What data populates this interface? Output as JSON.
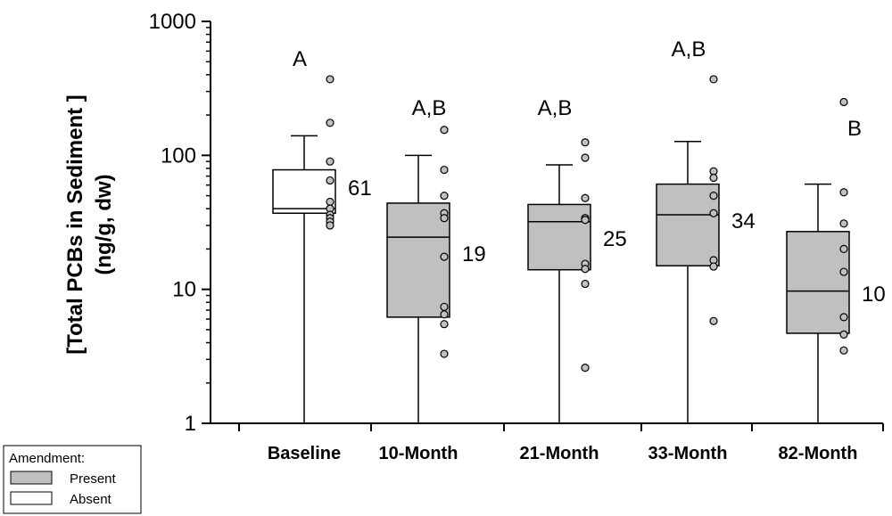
{
  "chart_data": {
    "type": "box",
    "ylabel": "[Total PCBs in Sediment ]",
    "ylabel_units": "(ng/g, dw)",
    "yscale": "log",
    "ylim": [
      1,
      1000
    ],
    "yticks": [
      {
        "value": 1,
        "label": "1"
      },
      {
        "value": 10,
        "label": "10"
      },
      {
        "value": 100,
        "label": "100"
      },
      {
        "value": 1000,
        "label": "1000"
      }
    ],
    "categories": [
      "Baseline",
      "10-Month",
      "21-Month",
      "33-Month",
      "82-Month"
    ],
    "groups": [
      {
        "name": "Baseline",
        "amendment": "Absent",
        "whisker_low": 1,
        "q1": 37,
        "median": 40,
        "q3": 78,
        "whisker_high": 140,
        "median_label": "61",
        "significance": "A",
        "points": [
          370,
          175,
          90,
          65,
          45,
          40,
          36,
          34,
          32,
          30
        ]
      },
      {
        "name": "10-Month",
        "amendment": "Present",
        "whisker_low": 1,
        "q1": 6.2,
        "median": 24.5,
        "q3": 44,
        "whisker_high": 100,
        "median_label": "19",
        "significance": "A,B",
        "points": [
          155,
          78,
          50,
          37,
          34,
          17.5,
          7.4,
          6.5,
          5.5,
          3.3
        ]
      },
      {
        "name": "21-Month",
        "amendment": "Present",
        "whisker_low": 1,
        "q1": 14,
        "median": 32,
        "q3": 43,
        "whisker_high": 85,
        "median_label": "25",
        "significance": "A,B",
        "points": [
          125,
          96,
          48,
          34,
          33,
          15.5,
          14.2,
          11,
          2.6
        ]
      },
      {
        "name": "33-Month",
        "amendment": "Present",
        "whisker_low": 1,
        "q1": 15,
        "median": 36,
        "q3": 61,
        "whisker_high": 127,
        "median_label": "34",
        "significance": "A,B",
        "points": [
          370,
          76,
          68,
          50,
          37,
          16.5,
          14.8,
          5.8
        ]
      },
      {
        "name": "82-Month",
        "amendment": "Present",
        "whisker_low": 1,
        "q1": 4.7,
        "median": 9.7,
        "q3": 27,
        "whisker_high": 61,
        "median_label": "10",
        "significance": "B",
        "points": [
          250,
          53,
          31,
          20,
          13.5,
          6.2,
          4.6,
          3.5
        ]
      }
    ],
    "legend": {
      "title": "Amendment:",
      "placement": "bottom-left",
      "entries": [
        {
          "label": "Present",
          "color": "#c0c0c0"
        },
        {
          "label": "Absent",
          "color": "#ffffff"
        }
      ]
    },
    "colors": {
      "present": "#c0c0c0",
      "absent": "#ffffff",
      "points_fill": "#c0c0c0",
      "stroke": "#000000"
    }
  }
}
